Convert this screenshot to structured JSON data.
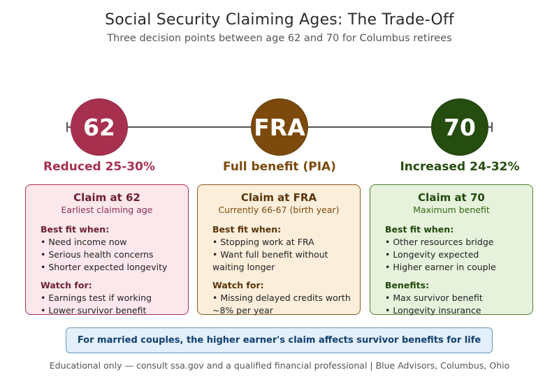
{
  "header": {
    "title": "Social Security Claiming Ages: The Trade-Off",
    "subtitle": "Three decision points between age 62 and 70 for Columbus retirees"
  },
  "timeline": {
    "nodes": [
      {
        "label": "62",
        "effect": "Reduced 25-30%",
        "color": "#a8304f",
        "effect_color": "#a8304f"
      },
      {
        "label": "FRA",
        "effect": "Full benefit (PIA)",
        "color": "#7b4a0c",
        "effect_color": "#7b4a0c"
      },
      {
        "label": "70",
        "effect": "Increased 24-32%",
        "color": "#254d0f",
        "effect_color": "#254d0f"
      }
    ]
  },
  "cards": [
    {
      "title": "Claim at 62",
      "subtitle": "Earliest claiming age",
      "accent": "#6b1f33",
      "subtitle_color": "#8a3050",
      "bg": "#fce8ec",
      "border": "#a8304f",
      "section1_head": "Best fit when:",
      "section1_items": [
        "• Need income now",
        "• Serious health concerns",
        "• Shorter expected longevity"
      ],
      "section2_head": "Watch for:",
      "section2_items": [
        "• Earnings test if working",
        "• Lower survivor benefit"
      ]
    },
    {
      "title": "Claim at FRA",
      "subtitle": "Currently 66-67 (birth year)",
      "accent": "#5a3508",
      "subtitle_color": "#7b4a0c",
      "bg": "#fbeedb",
      "border": "#8a5a1a",
      "section1_head": "Best fit when:",
      "section1_items": [
        "• Stopping work at FRA",
        "• Want full benefit without waiting longer"
      ],
      "section2_head": "Watch for:",
      "section2_items": [
        "• Missing delayed credits worth ~8% per year"
      ]
    },
    {
      "title": "Claim at 70",
      "subtitle": "Maximum benefit",
      "accent": "#1f4a0c",
      "subtitle_color": "#2f6a12",
      "bg": "#e7f2dc",
      "border": "#4f7f2f",
      "section1_head": "Best fit when:",
      "section1_items": [
        "• Other resources bridge",
        "• Longevity expected",
        "• Higher earner in couple"
      ],
      "section2_head": "Benefits:",
      "section2_items": [
        "• Max survivor benefit",
        "• Longevity insurance"
      ]
    }
  ],
  "callout": {
    "text": "For married couples, the higher earner's claim affects survivor benefits for life",
    "bg": "#e3effa",
    "border": "#6a9ac4",
    "color": "#12406e"
  },
  "footer": {
    "text": "Educational only — consult ssa.gov and a qualified financial professional | Blue Advisors, Columbus, Ohio"
  }
}
